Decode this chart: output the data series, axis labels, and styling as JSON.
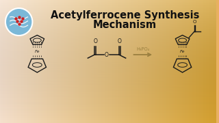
{
  "title_line1": "Acetylferrocene Synthesis",
  "title_line2": "Mechanism",
  "title_fontsize": 10.5,
  "arrow_label": "H₃PO₄",
  "arrow_color": "#9b8040",
  "structure_color": "#1a1a1a",
  "title_color": "#111111",
  "logo_circle_color": "#7ab8d8",
  "logo_red": "#cc2222",
  "bg_left": "#f5e2d0",
  "bg_right": "#d9a535"
}
